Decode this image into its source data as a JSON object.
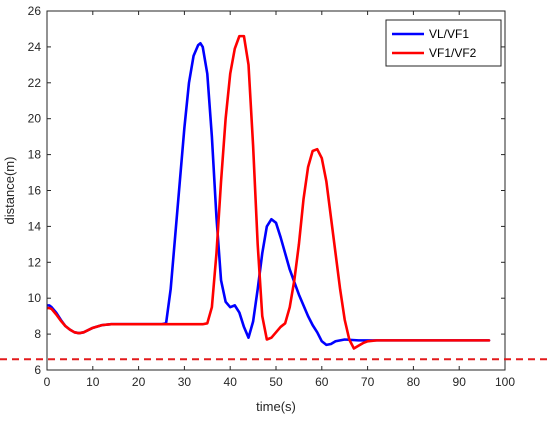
{
  "chart_data": {
    "type": "line",
    "xlabel": "time(s)",
    "ylabel": "distance(m)",
    "xlim": [
      0,
      100
    ],
    "ylim": [
      6,
      26
    ],
    "xticks": [
      0,
      10,
      20,
      30,
      40,
      50,
      60,
      70,
      80,
      90,
      100
    ],
    "yticks": [
      6,
      8,
      10,
      12,
      14,
      16,
      18,
      20,
      22,
      24,
      26
    ],
    "grid": false,
    "legend_position": "top-right",
    "reference_line": {
      "y": 6.6,
      "color": "#e31a1c",
      "style": "dashed"
    },
    "series": [
      {
        "name": "VL/VF1",
        "color": "#0000ff",
        "x": [
          0,
          0.5,
          1,
          2,
          3,
          4,
          5,
          6,
          7,
          8,
          10,
          12,
          14,
          16,
          18,
          20,
          22,
          24,
          25,
          26,
          27,
          28,
          29,
          30,
          31,
          32,
          33,
          33.5,
          34,
          35,
          36,
          37,
          38,
          39,
          40,
          41,
          42,
          43,
          44,
          45,
          46,
          47,
          48,
          49,
          50,
          51,
          52,
          53,
          54,
          55,
          56,
          57,
          58,
          59,
          60,
          61,
          62,
          63,
          65,
          68,
          70,
          75,
          80,
          85,
          90,
          95,
          96.5
        ],
        "y": [
          9.6,
          9.6,
          9.5,
          9.2,
          8.8,
          8.45,
          8.25,
          8.1,
          8.05,
          8.1,
          8.35,
          8.5,
          8.55,
          8.55,
          8.55,
          8.55,
          8.55,
          8.55,
          8.55,
          8.6,
          10.5,
          13.5,
          16.5,
          19.5,
          22.0,
          23.5,
          24.1,
          24.2,
          24.0,
          22.5,
          19.0,
          14.5,
          11.0,
          9.8,
          9.5,
          9.6,
          9.2,
          8.4,
          7.8,
          8.7,
          10.5,
          12.5,
          14.0,
          14.4,
          14.2,
          13.4,
          12.5,
          11.6,
          10.9,
          10.2,
          9.6,
          9.0,
          8.5,
          8.1,
          7.6,
          7.4,
          7.45,
          7.6,
          7.7,
          7.65,
          7.65,
          7.65,
          7.65,
          7.65,
          7.65,
          7.65,
          7.65
        ]
      },
      {
        "name": "VF1/VF2",
        "color": "#ff0000",
        "x": [
          0,
          0.5,
          1,
          2,
          3,
          4,
          5,
          6,
          7,
          8,
          10,
          12,
          14,
          16,
          18,
          20,
          22,
          24,
          26,
          28,
          30,
          32,
          34,
          35,
          36,
          37,
          38,
          39,
          40,
          41,
          42,
          43,
          44,
          45,
          46,
          47,
          48,
          49,
          50,
          51,
          52,
          53,
          54,
          55,
          56,
          57,
          58,
          59,
          60,
          61,
          62,
          63,
          64,
          65,
          66,
          67,
          68,
          69,
          70,
          72,
          75,
          80,
          85,
          90,
          95,
          96.5
        ],
        "y": [
          9.45,
          9.45,
          9.4,
          9.1,
          8.75,
          8.45,
          8.25,
          8.1,
          8.05,
          8.1,
          8.35,
          8.5,
          8.55,
          8.55,
          8.55,
          8.55,
          8.55,
          8.55,
          8.55,
          8.55,
          8.55,
          8.55,
          8.55,
          8.6,
          9.5,
          12.5,
          16.5,
          20.0,
          22.5,
          23.9,
          24.6,
          24.6,
          23.0,
          18.5,
          13.0,
          9.0,
          7.7,
          7.8,
          8.1,
          8.4,
          8.6,
          9.5,
          11.0,
          13.0,
          15.5,
          17.3,
          18.2,
          18.3,
          17.8,
          16.5,
          14.5,
          12.5,
          10.5,
          8.8,
          7.7,
          7.2,
          7.35,
          7.5,
          7.6,
          7.65,
          7.65,
          7.65,
          7.65,
          7.65,
          7.65,
          7.65
        ]
      }
    ]
  }
}
